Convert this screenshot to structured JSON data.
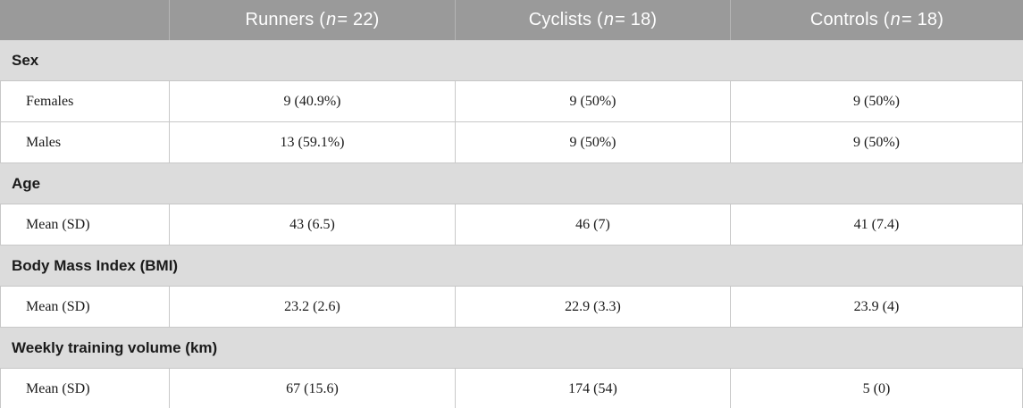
{
  "table": {
    "header": {
      "columns": [
        {
          "prefix": "Runners (",
          "n_symbol": "n",
          "suffix": " = 22)"
        },
        {
          "prefix": "Cyclists (",
          "n_symbol": "n",
          "suffix": " = 18)"
        },
        {
          "prefix": "Controls (",
          "n_symbol": "n",
          "suffix": " = 18)"
        }
      ]
    },
    "sections": [
      {
        "label": "Sex",
        "rows": [
          {
            "label": "Females",
            "values": [
              "9 (40.9%)",
              "9 (50%)",
              "9 (50%)"
            ]
          },
          {
            "label": "Males",
            "values": [
              "13 (59.1%)",
              "9 (50%)",
              "9 (50%)"
            ]
          }
        ]
      },
      {
        "label": "Age",
        "rows": [
          {
            "label": "Mean (SD)",
            "values": [
              "43 (6.5)",
              "46 (7)",
              "41 (7.4)"
            ]
          }
        ]
      },
      {
        "label": "Body Mass Index (BMI)",
        "rows": [
          {
            "label": "Mean (SD)",
            "values": [
              "23.2 (2.6)",
              "22.9 (3.3)",
              "23.9 (4)"
            ]
          }
        ]
      },
      {
        "label": "Weekly training volume (km)",
        "rows": [
          {
            "label": "Mean (SD)",
            "values": [
              "67 (15.6)",
              "174 (54)",
              "5 (0)"
            ]
          }
        ]
      }
    ]
  },
  "colors": {
    "header_background": "#9a9a9a",
    "header_text": "#ffffff",
    "header_divider": "#b5b5b5",
    "section_background": "#dcdcdc",
    "row_border": "#c8c8c8",
    "body_text": "#1a1a1a"
  }
}
